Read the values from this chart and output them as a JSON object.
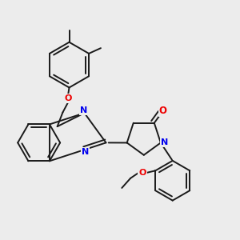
{
  "bg_color": "#ececec",
  "bond_color": "#1a1a1a",
  "nitrogen_color": "#0000ee",
  "oxygen_color": "#ee0000",
  "bond_width": 1.4,
  "dbo": 0.015,
  "xlim": [
    -0.05,
    1.05
  ],
  "ylim": [
    -0.05,
    1.05
  ]
}
